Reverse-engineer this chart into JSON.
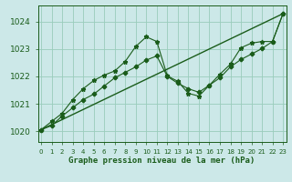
{
  "title": "Graphe pression niveau de la mer (hPa)",
  "bg_color": "#cce8e8",
  "grid_color": "#99ccbb",
  "line_color": "#1a5c1a",
  "ylim": [
    1019.6,
    1024.6
  ],
  "yticks": [
    1020,
    1021,
    1022,
    1023,
    1024
  ],
  "xlim": [
    -0.3,
    23.3
  ],
  "x_labels": [
    "0",
    "1",
    "2",
    "3",
    "4",
    "5",
    "6",
    "7",
    "8",
    "9",
    "10",
    "11",
    "12",
    "13",
    "14",
    "15",
    "16",
    "17",
    "18",
    "19",
    "20",
    "21",
    "22",
    "23"
  ],
  "series1_wavy": [
    1020.05,
    1020.35,
    1020.65,
    1021.15,
    1021.55,
    1021.85,
    1022.05,
    1022.2,
    1022.55,
    1023.1,
    1023.45,
    1023.28,
    1022.02,
    1021.82,
    1021.38,
    1021.28,
    1021.68,
    1022.08,
    1022.45,
    1023.05,
    1023.22,
    1023.28,
    1023.28,
    1024.3
  ],
  "series2_smooth": [
    1020.05,
    1020.2,
    1020.55,
    1020.85,
    1021.15,
    1021.35,
    1021.65,
    1021.95,
    1022.15,
    1022.35,
    1022.6,
    1022.75,
    1022.0,
    1021.75,
    1021.55,
    1021.42,
    1021.68,
    1021.95,
    1022.35,
    1022.62,
    1022.82,
    1023.02,
    1023.28,
    1024.3
  ],
  "trend_x": [
    0,
    23
  ],
  "trend_y": [
    1020.05,
    1024.3
  ]
}
